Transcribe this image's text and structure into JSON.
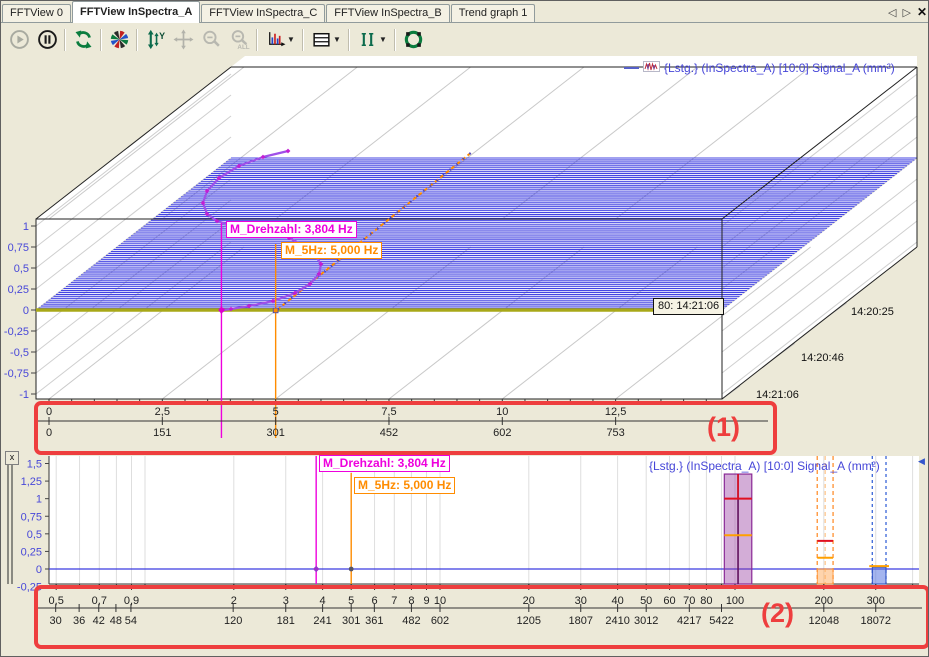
{
  "window": {
    "tab_nav_prev": "◁",
    "tab_nav_next": "▷",
    "tab_close": "✕",
    "panel_close": "x",
    "scroll_left_arrow": "◀"
  },
  "tabs": [
    {
      "label": "FFTView 0",
      "active": false
    },
    {
      "label": "FFTView InSpectra_A",
      "active": true
    },
    {
      "label": "FFTView InSpectra_C",
      "active": false
    },
    {
      "label": "FFTView InSpectra_B",
      "active": false
    },
    {
      "label": "Trend graph 1",
      "active": false
    }
  ],
  "toolbar": {
    "buttons": [
      {
        "icon": "play-icon",
        "enabled": false
      },
      {
        "icon": "pause-icon",
        "enabled": true
      },
      {
        "sep": true
      },
      {
        "icon": "refresh-icon",
        "enabled": true
      },
      {
        "sep": true
      },
      {
        "icon": "pinwheel-icon",
        "enabled": true
      },
      {
        "sep": true
      },
      {
        "icon": "scale-y-icon",
        "enabled": true
      },
      {
        "icon": "pan-icon",
        "enabled": false
      },
      {
        "icon": "zoom-out-icon",
        "enabled": false
      },
      {
        "icon": "zoom-out-all-icon",
        "enabled": false
      },
      {
        "sep": true
      },
      {
        "icon": "chart-type-icon",
        "enabled": true,
        "caret": true
      },
      {
        "sep": true
      },
      {
        "icon": "layout-icon",
        "enabled": true,
        "caret": true
      },
      {
        "sep": true
      },
      {
        "icon": "cursor-mode-icon",
        "enabled": true,
        "caret": true
      },
      {
        "sep": true
      },
      {
        "icon": "tracking-icon",
        "enabled": true
      }
    ]
  },
  "annotations": {
    "box1_label": "(1)",
    "box2_label": "(2)",
    "color": "#ee3e3e"
  },
  "chart_data": [
    {
      "type": "area",
      "subtype": "3d-waterfall-spectrogram",
      "legend": "{Lstg.} (InSpectra_A) [10:0] Signal_A (mm²)",
      "ylim": [
        -1,
        1
      ],
      "y_tick_values": [
        1,
        0.75,
        0.5,
        0.25,
        0,
        -0.25,
        -0.5,
        -0.75,
        -1
      ],
      "y_tick_labels": [
        "1",
        "0,75",
        "0,5",
        "0,25",
        "0",
        "-0,25",
        "-0,5",
        "-0,75",
        "-1"
      ],
      "x_axis_rows": [
        {
          "name": "frequency-hz",
          "values": [
            0,
            2.5,
            5,
            7.5,
            10,
            12.5
          ],
          "labels": [
            "0",
            "2,5",
            "5",
            "7,5",
            "10",
            "12,5"
          ]
        },
        {
          "name": "speed-rpm",
          "values": [
            0,
            2.5,
            5,
            7.5,
            10,
            12.5
          ],
          "labels": [
            "0",
            "151",
            "301",
            "452",
            "602",
            "753"
          ]
        }
      ],
      "time_axis_labels": [
        "14:20:25",
        "14:20:46",
        "14:21:06"
      ],
      "active_spectrum_tooltip": "80: 14:21:06",
      "n_spectra": 80,
      "markers": [
        {
          "name": "M_Drehzahl",
          "label": "M_Drehzahl: 3,804 Hz",
          "hz": 3.804,
          "color": "#ee00dd"
        },
        {
          "name": "M_5Hz",
          "label": "M_5Hz: 5,000 Hz",
          "hz": 5.0,
          "color": "#ff8c00"
        }
      ]
    },
    {
      "type": "line",
      "subtype": "log-frequency-spectrum",
      "legend": "{Lstg.} (InSpectra_A) [10:0] Signal_A (mm²)",
      "ylim": [
        -0.25,
        1.5
      ],
      "y_tick_values": [
        1.5,
        1.25,
        1,
        0.75,
        0.5,
        0.25,
        0,
        -0.25
      ],
      "y_tick_labels": [
        "1,5",
        "1,25",
        "1",
        "0,75",
        "0,5",
        "0,25",
        "0",
        "-0,25"
      ],
      "baseline_value": 0,
      "minor_hz": [
        0.5,
        0.6,
        0.7,
        0.8,
        0.9,
        1,
        2,
        3,
        4,
        5,
        6,
        7,
        8,
        9,
        10,
        20,
        30,
        40,
        50,
        60,
        70,
        80,
        90,
        100,
        200,
        300,
        400
      ],
      "x_axis_rows": [
        {
          "name": "frequency-hz",
          "values": [
            0.5,
            0.7,
            0.9,
            2,
            3,
            4,
            5,
            6,
            7,
            8,
            9,
            10,
            20,
            30,
            40,
            50,
            60,
            70,
            80,
            100,
            200,
            300
          ],
          "labels": [
            "0,5",
            "0,7",
            "0,9",
            "2",
            "3",
            "4",
            "5",
            "6",
            "7",
            "8",
            "9",
            "10",
            "20",
            "30",
            "40",
            "50",
            "60",
            "70",
            "80",
            "100",
            "200",
            "300"
          ]
        },
        {
          "name": "speed-rpm",
          "values": [
            0.498,
            0.598,
            0.697,
            0.797,
            0.896,
            1.99,
            3,
            4,
            5,
            5.99,
            8,
            10,
            20,
            30,
            40,
            50,
            70,
            90,
            200,
            300
          ],
          "labels": [
            "30",
            "36",
            "42",
            "48",
            "54",
            "120",
            "181",
            "241",
            "301",
            "361",
            "482",
            "602",
            "1205",
            "1807",
            "2410",
            "3012",
            "4217",
            "5422",
            "12048",
            "18072"
          ]
        }
      ],
      "markers": [
        {
          "name": "M_Drehzahl",
          "label": "M_Drehzahl: 3,804 Hz",
          "hz": 3.804,
          "color": "#ee00dd"
        },
        {
          "name": "M_5Hz",
          "label": "M_5Hz: 5,000 Hz",
          "hz": 5.0,
          "color": "#ff8c00"
        }
      ],
      "bands": [
        {
          "name": "band-100hz",
          "hz_from": 92,
          "hz_to": 114,
          "style": "solid",
          "color": "#8a2a96",
          "top_value": 1.35,
          "red_line_value": 1.0,
          "orange_line_value": 0.48
        },
        {
          "name": "band-200hz",
          "hz_from": 190,
          "hz_to": 215,
          "style": "dashed",
          "color": "#ff9030",
          "red_line_value": 0.4,
          "orange_line_value": 0.16
        },
        {
          "name": "band-300hz",
          "hz_from": 292,
          "hz_to": 325,
          "style": "dashed",
          "color": "#3a66d8",
          "orange_line_value": 0.04
        }
      ]
    }
  ]
}
